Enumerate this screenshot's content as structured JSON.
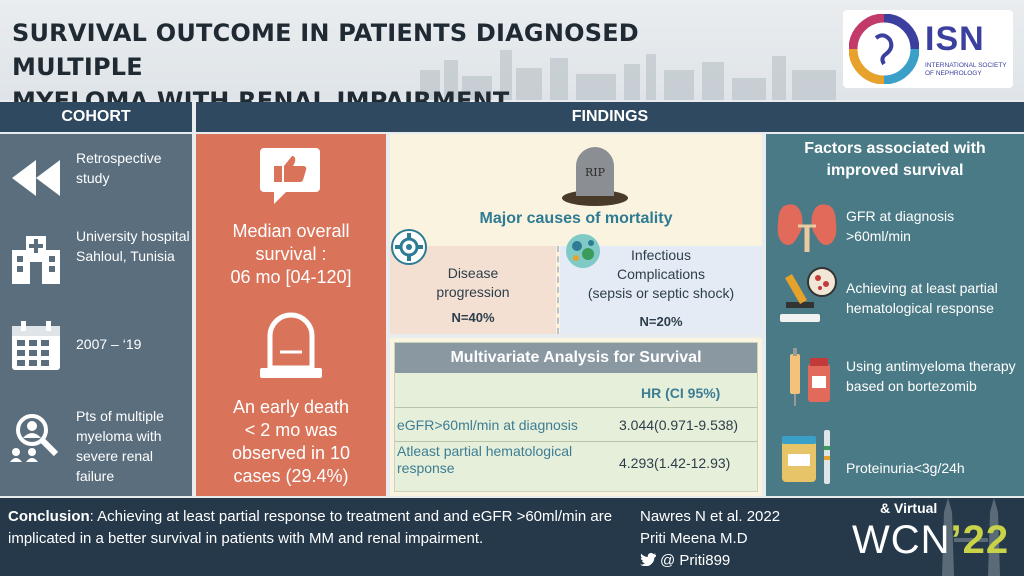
{
  "header": {
    "title_line1": "SURVIVAL OUTCOME IN PATIENTS DIAGNOSED MULTIPLE",
    "title_line2": "MYELOMA WITH RENAL IMPAIRMENT",
    "logo": {
      "name": "ISN",
      "subtitle": "INTERNATIONAL SOCIETY OF NEPHROLOGY"
    }
  },
  "sections": {
    "cohort": "COHORT",
    "findings": "FINDINGS"
  },
  "cohort": [
    {
      "icon": "rewind-icon",
      "text": "Retrospective study"
    },
    {
      "icon": "hospital-icon",
      "text": "University hospital Sahloul, Tunisia"
    },
    {
      "icon": "calendar-icon",
      "text": "2007 – ‘19"
    },
    {
      "icon": "patients-search-icon",
      "text": "Pts of multiple myeloma with severe renal failure"
    }
  ],
  "survival": {
    "median_line1": "Median overall",
    "median_line2": "survival :",
    "median_line3": "06 mo [04-120]",
    "early_line1": "An early death",
    "early_line2": "< 2 mo was",
    "early_line3": "observed in 10",
    "early_line4": "cases (29.4%)"
  },
  "mortality": {
    "tombstone_text": "RIP",
    "title": "Major causes of mortality",
    "causes": [
      {
        "icon": "gear-icon",
        "line1": "Disease",
        "line2": "progression",
        "n": "N=40%"
      },
      {
        "icon": "virus-icon",
        "line1": "Infectious",
        "line2": "Complications",
        "line3": "(sepsis or septic shock)",
        "n": "N=20%"
      }
    ]
  },
  "multivariate": {
    "title": "Multivariate Analysis for Survival",
    "hr_header": "HR (CI 95%)",
    "rows": [
      {
        "label": "eGFR>60ml/min at diagnosis",
        "value": "3.044(0.971-9.538)"
      },
      {
        "label_line1": "Atleast partial hematological",
        "label_line2": "response",
        "value": "4.293(1.42-12.93)"
      }
    ]
  },
  "factors": {
    "title_line1": "Factors associated with",
    "title_line2": "improved survival",
    "items": [
      {
        "icon": "kidney-icon",
        "text": "GFR at diagnosis >60ml/min"
      },
      {
        "icon": "microscope-icon",
        "text": "Achieving at least partial hematological response"
      },
      {
        "icon": "syringe-vial-icon",
        "text": "Using antimyeloma therapy based on bortezomib"
      },
      {
        "icon": "urine-test-icon",
        "text": "Proteinuria<3g/24h"
      }
    ]
  },
  "footer": {
    "conclusion_label": "Conclusion",
    "conclusion_text": ": Achieving at least partial response to treatment and and eGFR >60ml/min are implicated in a better survival in patients with MM and renal impairment.",
    "author1": "Nawres  N et al. 2022",
    "author2": "Priti Meena M.D",
    "twitter": "@ Priti899",
    "wcn_virtual": "& Virtual",
    "wcn_name": "WCN",
    "wcn_year": "’22"
  },
  "colors": {
    "header_dark": "#2f4a60",
    "cohort_bg": "#5a6e7e",
    "survival_bg": "#d9735a",
    "mortality_bg": "#f9f3df",
    "factors_bg": "#4a7a86",
    "footer_bg": "#26394a",
    "accent_teal": "#2e7b94",
    "wcn_year": "#c9d34a"
  }
}
